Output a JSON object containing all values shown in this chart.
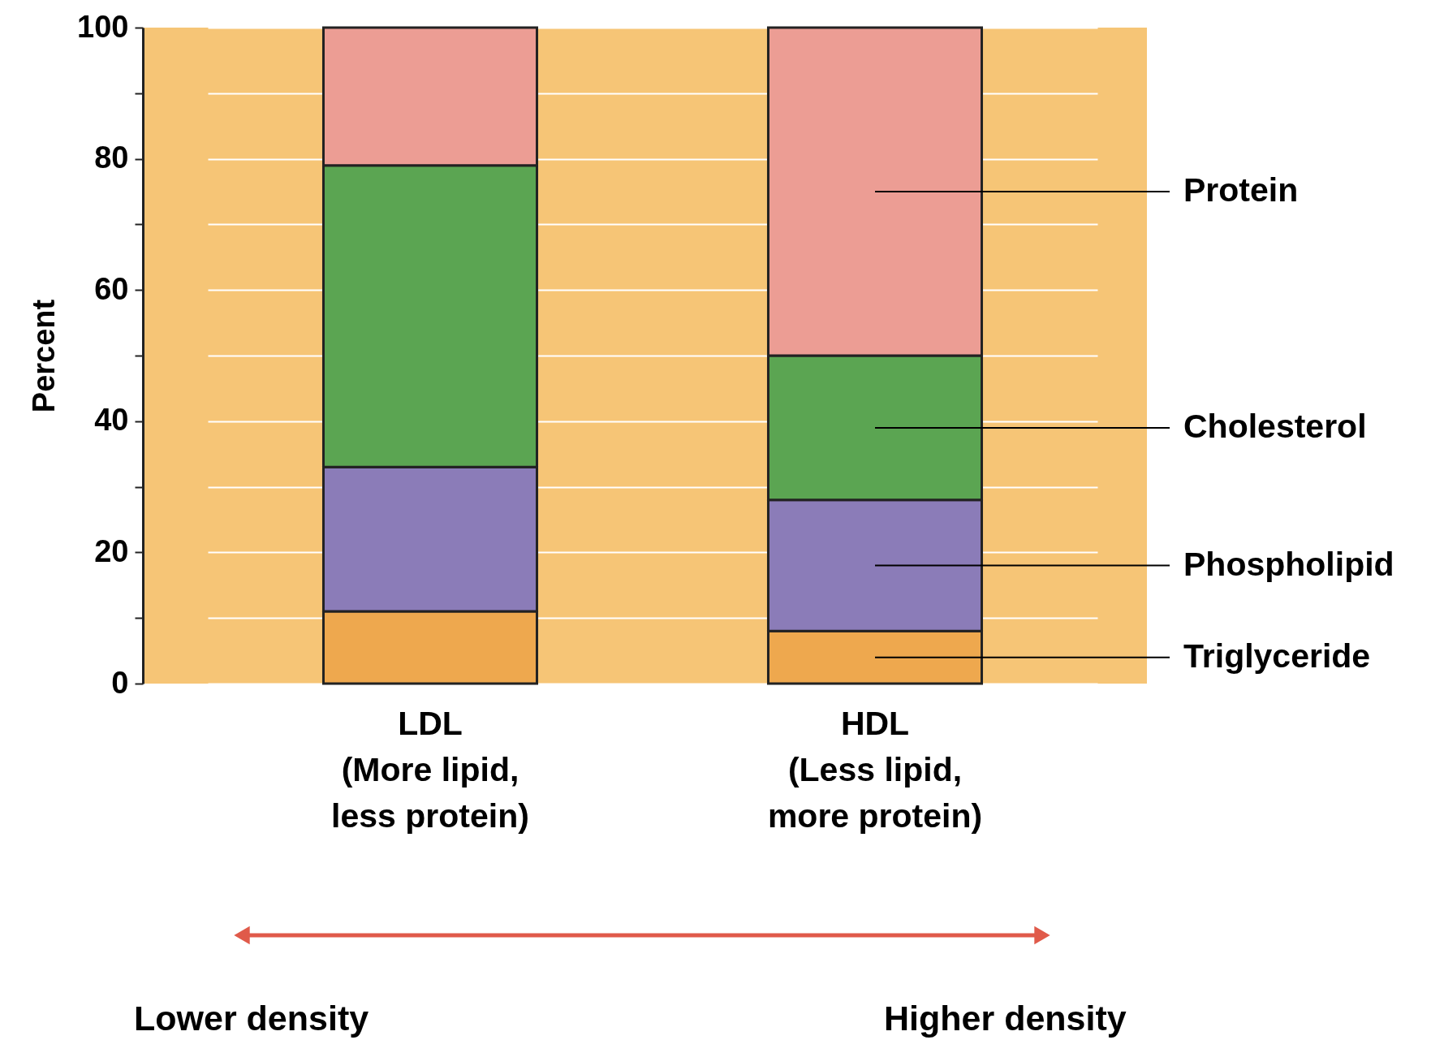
{
  "chart_data": {
    "type": "bar",
    "stacked": true,
    "ylabel": "Percent",
    "categories": [
      "LDL\n(More lipid,\nless protein)",
      "HDL\n(Less lipid,\nmore protein)"
    ],
    "series": [
      {
        "name": "Triglyceride",
        "color": "#eea84e",
        "values": [
          11,
          8
        ]
      },
      {
        "name": "Phospholipid",
        "color": "#8b7cb8",
        "values": [
          22,
          20
        ]
      },
      {
        "name": "Cholesterol",
        "color": "#5ba552",
        "values": [
          46,
          22
        ]
      },
      {
        "name": "Protein",
        "color": "#ec9d94",
        "values": [
          21,
          50
        ]
      }
    ],
    "ylim": [
      0,
      100
    ],
    "yticks": [
      0,
      {
        "value": 10,
        "label": null
      },
      20,
      {
        "value": 30,
        "label": null
      },
      40,
      {
        "value": 50,
        "label": null
      },
      60,
      {
        "value": 70,
        "label": null
      },
      80,
      {
        "value": 90,
        "label": null
      },
      100
    ],
    "grid": "y",
    "annotations": [
      "Lower density",
      "Higher density"
    ]
  }
}
